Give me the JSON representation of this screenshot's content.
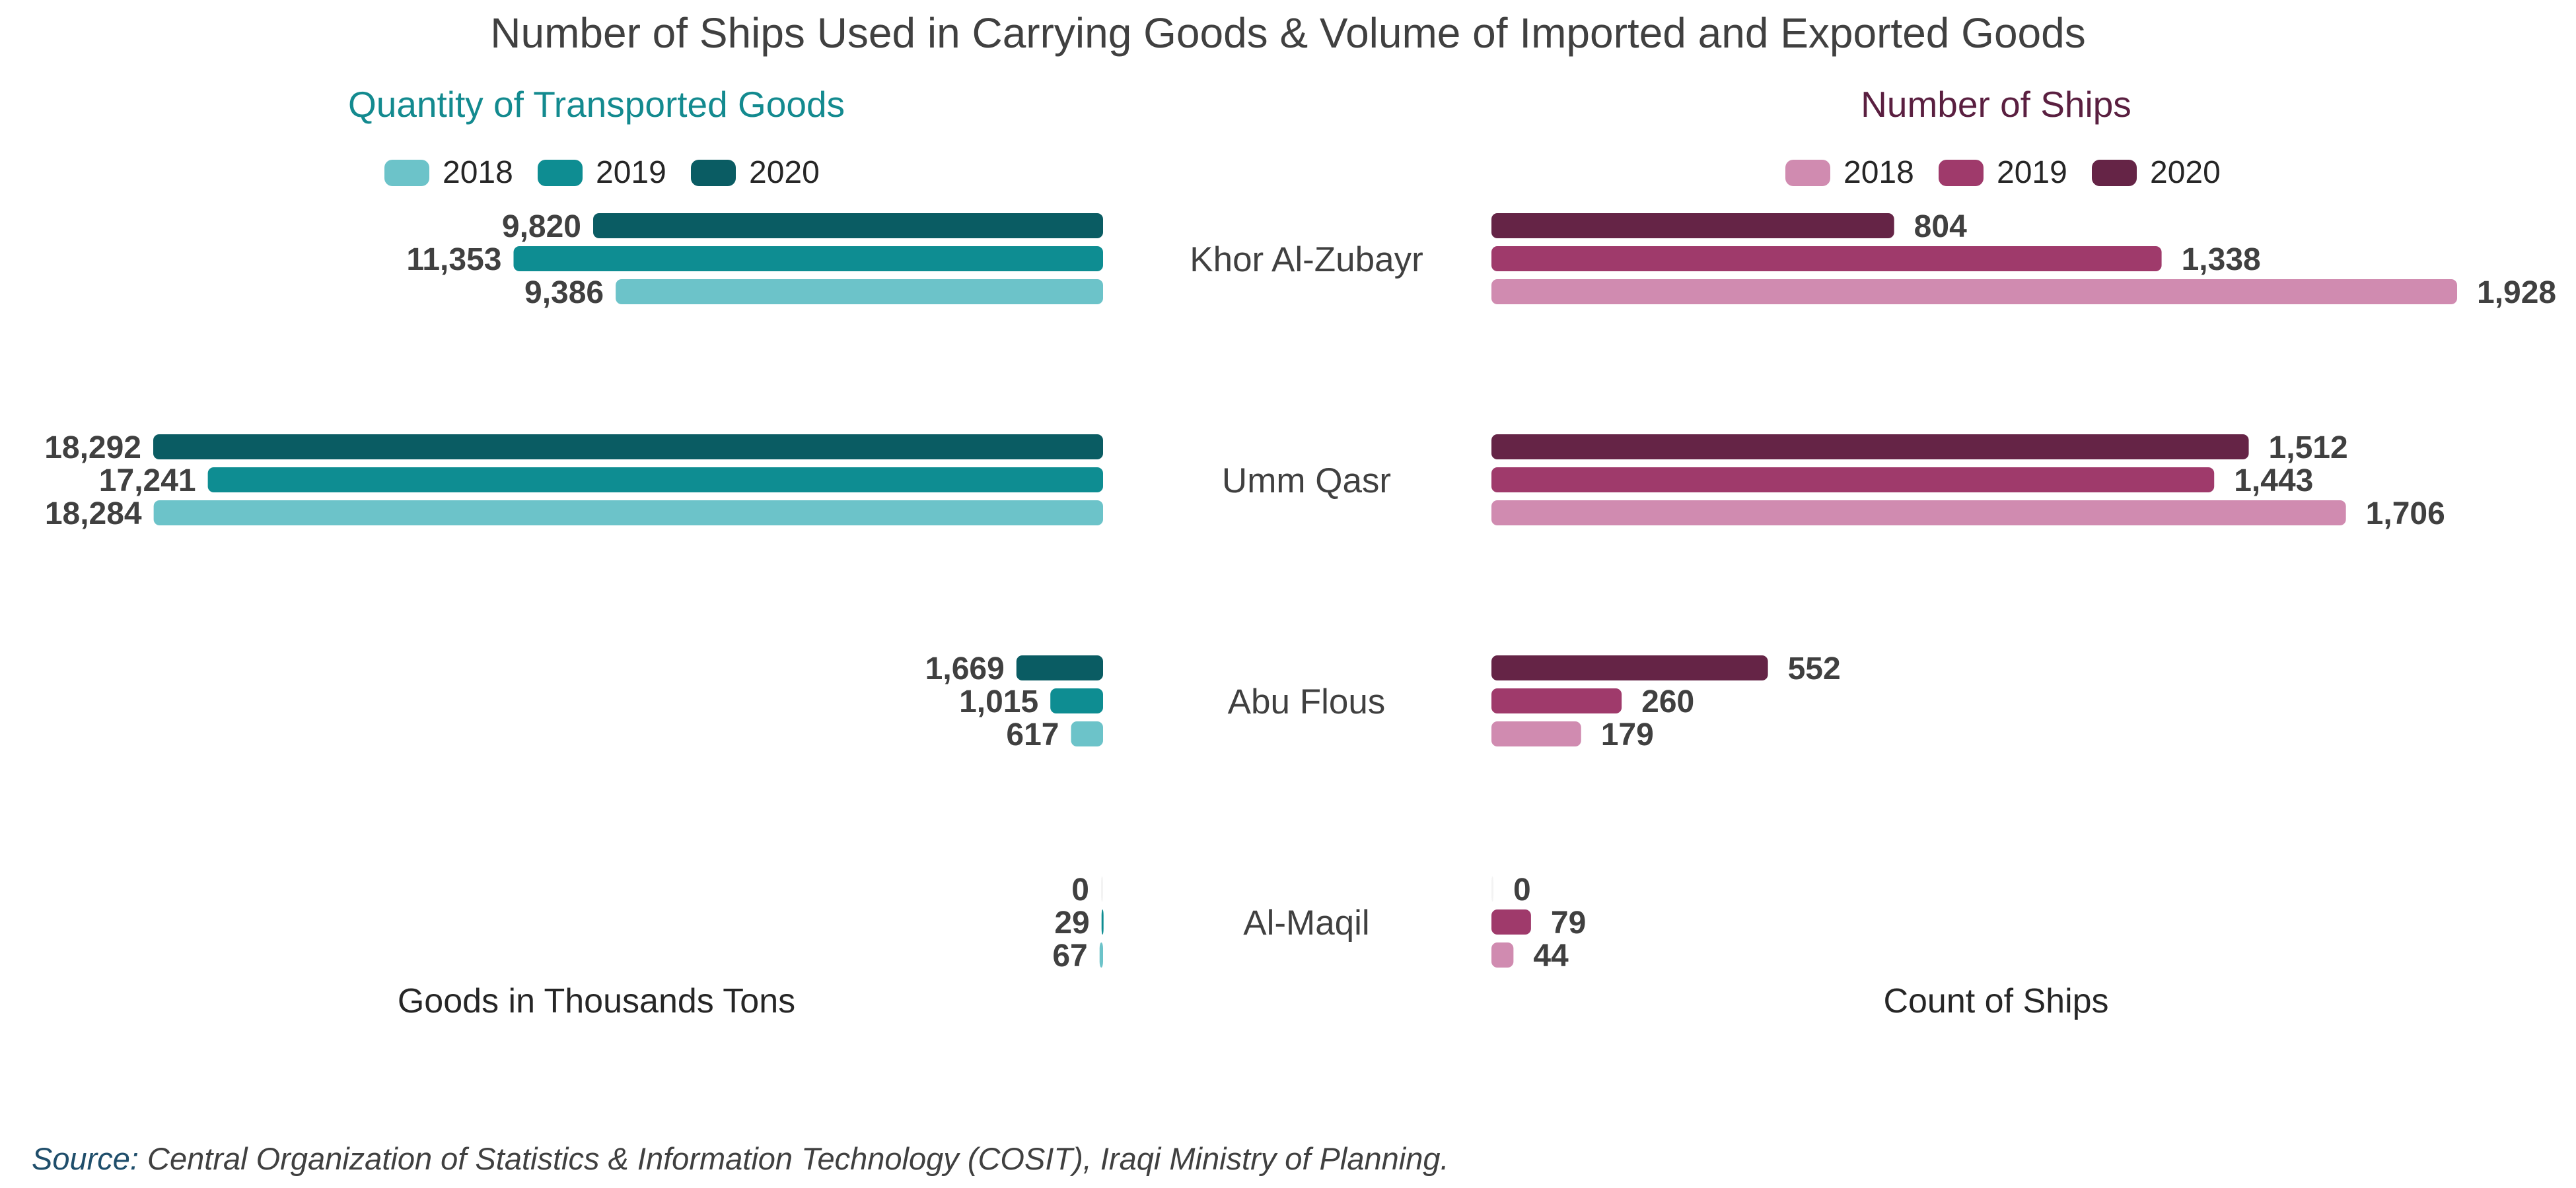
{
  "title": "Number of Ships Used in Carrying Goods & Volume of Imported and Exported Goods",
  "categories": [
    "Khor Al-Zubayr",
    "Umm Qasr",
    "Abu Flous",
    "Al-Maqil"
  ],
  "source_label": "Source:",
  "source_text": " Central Organization of Statistics & Information Technology (COSIT), Iraqi Ministry of Planning.",
  "chart_data": [
    {
      "type": "bar",
      "orientation": "horizontal",
      "title": "Quantity of Transported Goods",
      "xlabel": "Goods in Thousands Tons",
      "categories": [
        "Khor Al-Zubayr",
        "Umm Qasr",
        "Abu Flous",
        "Al-Maqil"
      ],
      "series": [
        {
          "name": "2018",
          "values": [
            9386,
            18284,
            617,
            67
          ],
          "labels": [
            "9,386",
            "18,284",
            "617",
            "67"
          ],
          "color": "#6cc3c9"
        },
        {
          "name": "2019",
          "values": [
            11353,
            17241,
            1015,
            29
          ],
          "labels": [
            "11,353",
            "17,241",
            "1,015",
            "29"
          ],
          "color": "#0e8d92"
        },
        {
          "name": "2020",
          "values": [
            9820,
            18292,
            1669,
            0
          ],
          "labels": [
            "9,820",
            "18,292",
            "1,669",
            "0"
          ],
          "color": "#0a5c63"
        }
      ],
      "title_color": "#138a8f",
      "legend_position": "top",
      "grid": false
    },
    {
      "type": "bar",
      "orientation": "horizontal",
      "title": "Number of Ships",
      "xlabel": "Count of Ships",
      "categories": [
        "Khor Al-Zubayr",
        "Umm Qasr",
        "Abu Flous",
        "Al-Maqil"
      ],
      "series": [
        {
          "name": "2018",
          "values": [
            1928,
            1706,
            179,
            44
          ],
          "labels": [
            "1,928",
            "1,706",
            "179",
            "44"
          ],
          "color": "#d08bb0"
        },
        {
          "name": "2019",
          "values": [
            1338,
            1443,
            260,
            79
          ],
          "labels": [
            "1,338",
            "1,443",
            "260",
            "79"
          ],
          "color": "#9f3a6b"
        },
        {
          "name": "2020",
          "values": [
            804,
            1512,
            552,
            0
          ],
          "labels": [
            "804",
            "1,512",
            "552",
            "0"
          ],
          "color": "#652446"
        }
      ],
      "title_color": "#5a1f40",
      "legend_position": "top",
      "grid": false
    }
  ]
}
